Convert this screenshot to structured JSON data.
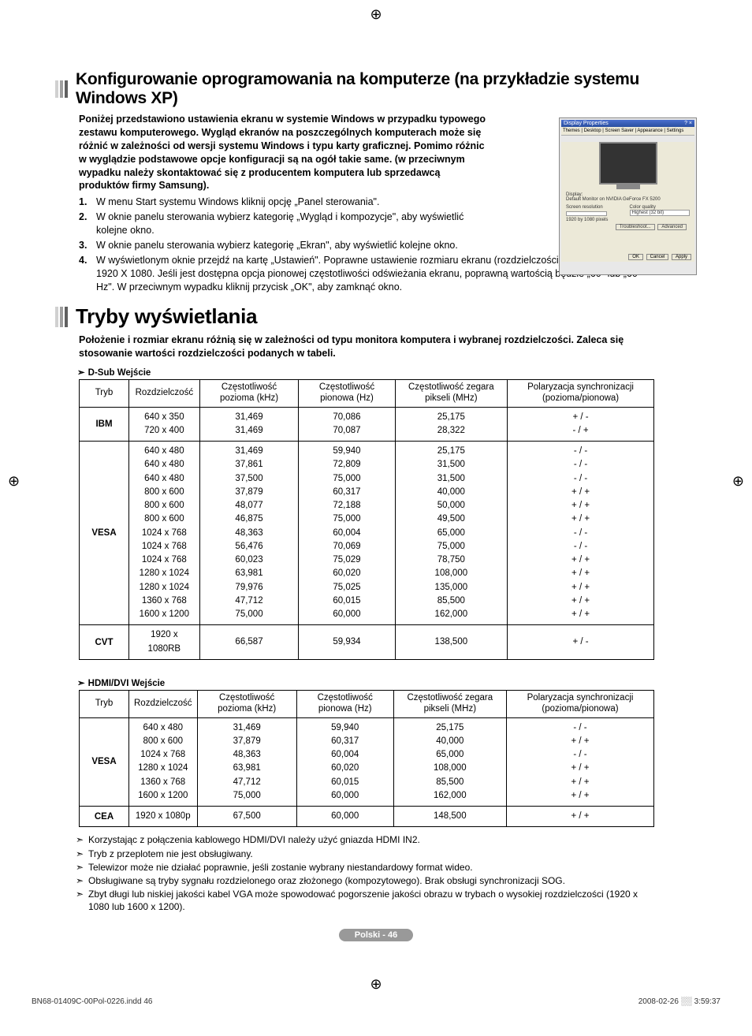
{
  "crop_glyph": "⊕",
  "section1": {
    "title": "Konfigurowanie oprogramowania na komputerze (na przykładzie systemu Windows XP)",
    "intro": "Poniżej przedstawiono ustawienia ekranu w systemie Windows w przypadku typowego zestawu komputerowego. Wygląd ekranów na poszczególnych komputerach może się różnić w zależności od wersji systemu Windows i typu karty graficznej. Pomimo różnic w wyglądzie podstawowe opcje konfiguracji są na ogół takie same. (w przeciwnym wypadku należy skontaktować się z producentem komputera lub sprzedawcą produktów firmy Samsung).",
    "steps": [
      "W menu Start systemu Windows kliknij opcję „Panel sterowania\".",
      "W oknie panelu sterowania wybierz kategorię „Wygląd i kompozycje\", aby wyświetlić kolejne okno.",
      "W oknie panelu sterowania wybierz kategorię „Ekran\", aby wyświetlić kolejne okno.",
      "W wyświetlonym oknie przejdź na kartę „Ustawień\". Poprawne ustawienie rozmiaru ekranu (rozdzielczości): Optymalnie — 1920 X 1080. Jeśli jest dostępna opcja pionowej częstotliwości odświeżania ekranu, poprawną wartością będzie „60\" lub „60 Hz\". W przeciwnym wypadku kliknij przycisk „OK\", aby zamknąć okno."
    ],
    "dialog": {
      "title": "Display Properties",
      "tabs": "Themes | Desktop | Screen Saver | Appearance | Settings",
      "display_label": "Display:",
      "display_value": "Default Monitor on NVIDIA GeForce FX 5200",
      "res_label": "Screen resolution",
      "res_value": "1920 by 1080 pixels",
      "quality_label": "Color quality",
      "quality_value": "Highest (32 bit)",
      "btn_trouble": "Troubleshoot...",
      "btn_adv": "Advanced",
      "btn_ok": "OK",
      "btn_cancel": "Cancel",
      "btn_apply": "Apply"
    }
  },
  "section2": {
    "title": "Tryby wyświetlania",
    "intro": "Położenie i rozmiar ekranu różnią się w zależności od typu monitora komputera i wybranej rozdzielczości. Zaleca się stosowanie wartości rozdzielczości podanych w tabeli.",
    "table_headers": {
      "mode": "Tryb",
      "resolution": "Rozdzielczość",
      "hfreq": "Częstotliwość pozioma (kHz)",
      "vfreq": "Częstotliwość pionowa (Hz)",
      "pixclock": "Częstotliwość zegara pikseli (MHz)",
      "sync": "Polaryzacja synchronizacji (pozioma/pionowa)"
    },
    "dsub_label": "D-Sub Wejście",
    "hdmi_label": "HDMI/DVI Wejście",
    "dsub_rows": [
      {
        "mode": "IBM",
        "lines": [
          {
            "res": "640 x 350",
            "h": "31,469",
            "v": "70,086",
            "p": "25,175",
            "s": "+ / -"
          },
          {
            "res": "720 x 400",
            "h": "31,469",
            "v": "70,087",
            "p": "28,322",
            "s": "- / +"
          }
        ]
      },
      {
        "mode": "VESA",
        "lines": [
          {
            "res": "640 x 480",
            "h": "31,469",
            "v": "59,940",
            "p": "25,175",
            "s": "- / -"
          },
          {
            "res": "640 x 480",
            "h": "37,861",
            "v": "72,809",
            "p": "31,500",
            "s": "- / -"
          },
          {
            "res": "640 x 480",
            "h": "37,500",
            "v": "75,000",
            "p": "31,500",
            "s": "- / -"
          },
          {
            "res": "800 x 600",
            "h": "37,879",
            "v": "60,317",
            "p": "40,000",
            "s": "+ / +"
          },
          {
            "res": "800 x 600",
            "h": "48,077",
            "v": "72,188",
            "p": "50,000",
            "s": "+ / +"
          },
          {
            "res": "800 x 600",
            "h": "46,875",
            "v": "75,000",
            "p": "49,500",
            "s": "+ / +"
          },
          {
            "res": "1024 x 768",
            "h": "48,363",
            "v": "60,004",
            "p": "65,000",
            "s": "- / -"
          },
          {
            "res": "1024 x 768",
            "h": "56,476",
            "v": "70,069",
            "p": "75,000",
            "s": "- / -"
          },
          {
            "res": "1024 x 768",
            "h": "60,023",
            "v": "75,029",
            "p": "78,750",
            "s": "+ / +"
          },
          {
            "res": "1280 x 1024",
            "h": "63,981",
            "v": "60,020",
            "p": "108,000",
            "s": "+ / +"
          },
          {
            "res": "1280 x 1024",
            "h": "79,976",
            "v": "75,025",
            "p": "135,000",
            "s": "+ / +"
          },
          {
            "res": "1360 x 768",
            "h": "47,712",
            "v": "60,015",
            "p": "85,500",
            "s": "+ / +"
          },
          {
            "res": "1600 x 1200",
            "h": "75,000",
            "v": "60,000",
            "p": "162,000",
            "s": "+ / +"
          }
        ]
      },
      {
        "mode": "CVT",
        "lines": [
          {
            "res": "1920 x 1080RB",
            "h": "66,587",
            "v": "59,934",
            "p": "138,500",
            "s": "+ / -"
          }
        ]
      }
    ],
    "hdmi_rows": [
      {
        "mode": "VESA",
        "lines": [
          {
            "res": "640 x 480",
            "h": "31,469",
            "v": "59,940",
            "p": "25,175",
            "s": "- / -"
          },
          {
            "res": "800 x 600",
            "h": "37,879",
            "v": "60,317",
            "p": "40,000",
            "s": "+ / +"
          },
          {
            "res": "1024 x 768",
            "h": "48,363",
            "v": "60,004",
            "p": "65,000",
            "s": "- / -"
          },
          {
            "res": "1280 x 1024",
            "h": "63,981",
            "v": "60,020",
            "p": "108,000",
            "s": "+ / +"
          },
          {
            "res": "1360 x 768",
            "h": "47,712",
            "v": "60,015",
            "p": "85,500",
            "s": "+ / +"
          },
          {
            "res": "1600 x 1200",
            "h": "75,000",
            "v": "60,000",
            "p": "162,000",
            "s": "+ / +"
          }
        ]
      },
      {
        "mode": "CEA",
        "lines": [
          {
            "res": "1920 x 1080p",
            "h": "67,500",
            "v": "60,000",
            "p": "148,500",
            "s": "+ / +"
          }
        ]
      }
    ],
    "notes": [
      "Korzystając z połączenia kablowego HDMI/DVI należy użyć gniazda HDMI IN2.",
      "Tryb z przeplotem nie jest obsługiwany.",
      "Telewizor może nie działać poprawnie, jeśli zostanie wybrany niestandardowy format wideo.",
      "Obsługiwane są tryby sygnału rozdzielonego oraz złożonego (kompozytowego). Brak obsługi synchronizacji SOG.",
      "Zbyt długi lub niskiej jakości kabel VGA może spowodować pogorszenie jakości obrazu w trybach o wysokiej rozdzielczości (1920 x 1080 lub 1600 x 1200)."
    ]
  },
  "footer": {
    "page_label": "Polski - 46",
    "file": "BN68-01409C-00Pol-0226.indd   46",
    "timestamp": "2008-02-26   ░░ 3:59:37"
  }
}
